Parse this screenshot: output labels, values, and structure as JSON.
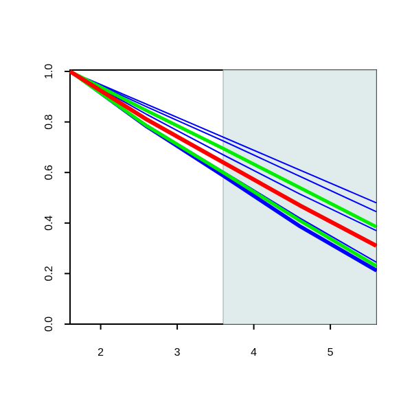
{
  "chart_data": {
    "type": "line",
    "x": [
      1.6,
      2.6,
      3.6,
      4.6,
      5.6
    ],
    "series": [
      {
        "color": "#0000ff",
        "linewidth": 2,
        "values": [
          1,
          0.87,
          0.74,
          0.61,
          0.48
        ]
      },
      {
        "color": "#0000ff",
        "linewidth": 2,
        "values": [
          1,
          0.86,
          0.725,
          0.585,
          0.445
        ]
      },
      {
        "color": "#0000ff",
        "linewidth": 2,
        "values": [
          1,
          0.83,
          0.67,
          0.515,
          0.37
        ]
      },
      {
        "color": "#0000ff",
        "linewidth": 2,
        "values": [
          1,
          0.79,
          0.605,
          0.42,
          0.245
        ]
      },
      {
        "color": "#0000ff",
        "linewidth": 4,
        "values": [
          1,
          0.78,
          0.59,
          0.39,
          0.215
        ]
      },
      {
        "color": "#0000ff",
        "linewidth": 4,
        "values": [
          1,
          0.78,
          0.585,
          0.385,
          0.21
        ]
      },
      {
        "color": "#00ee00",
        "linewidth": 5,
        "values": [
          1,
          0.845,
          0.695,
          0.54,
          0.385
        ]
      },
      {
        "color": "#00ee00",
        "linewidth": 5,
        "values": [
          1,
          0.785,
          0.6,
          0.41,
          0.23
        ]
      },
      {
        "color": "#ff0000",
        "linewidth": 6,
        "values": [
          1,
          0.81,
          0.64,
          0.47,
          0.31
        ]
      }
    ],
    "shaded_region": {
      "xlim": [
        3.6,
        5.6
      ],
      "color": "#dfeceb"
    },
    "xlim": [
      1.6,
      5.6
    ],
    "ylim": [
      0,
      1
    ],
    "xticks": [
      2,
      3,
      4,
      5
    ],
    "yticks": [
      {
        "value": 0,
        "label": "0.0"
      },
      {
        "value": 0.2,
        "label": "0.2"
      },
      {
        "value": 0.4,
        "label": "0.4"
      },
      {
        "value": 0.6,
        "label": "0.6"
      },
      {
        "value": 0.8,
        "label": "0.8"
      },
      {
        "value": 1,
        "label": "1.0"
      }
    ]
  }
}
